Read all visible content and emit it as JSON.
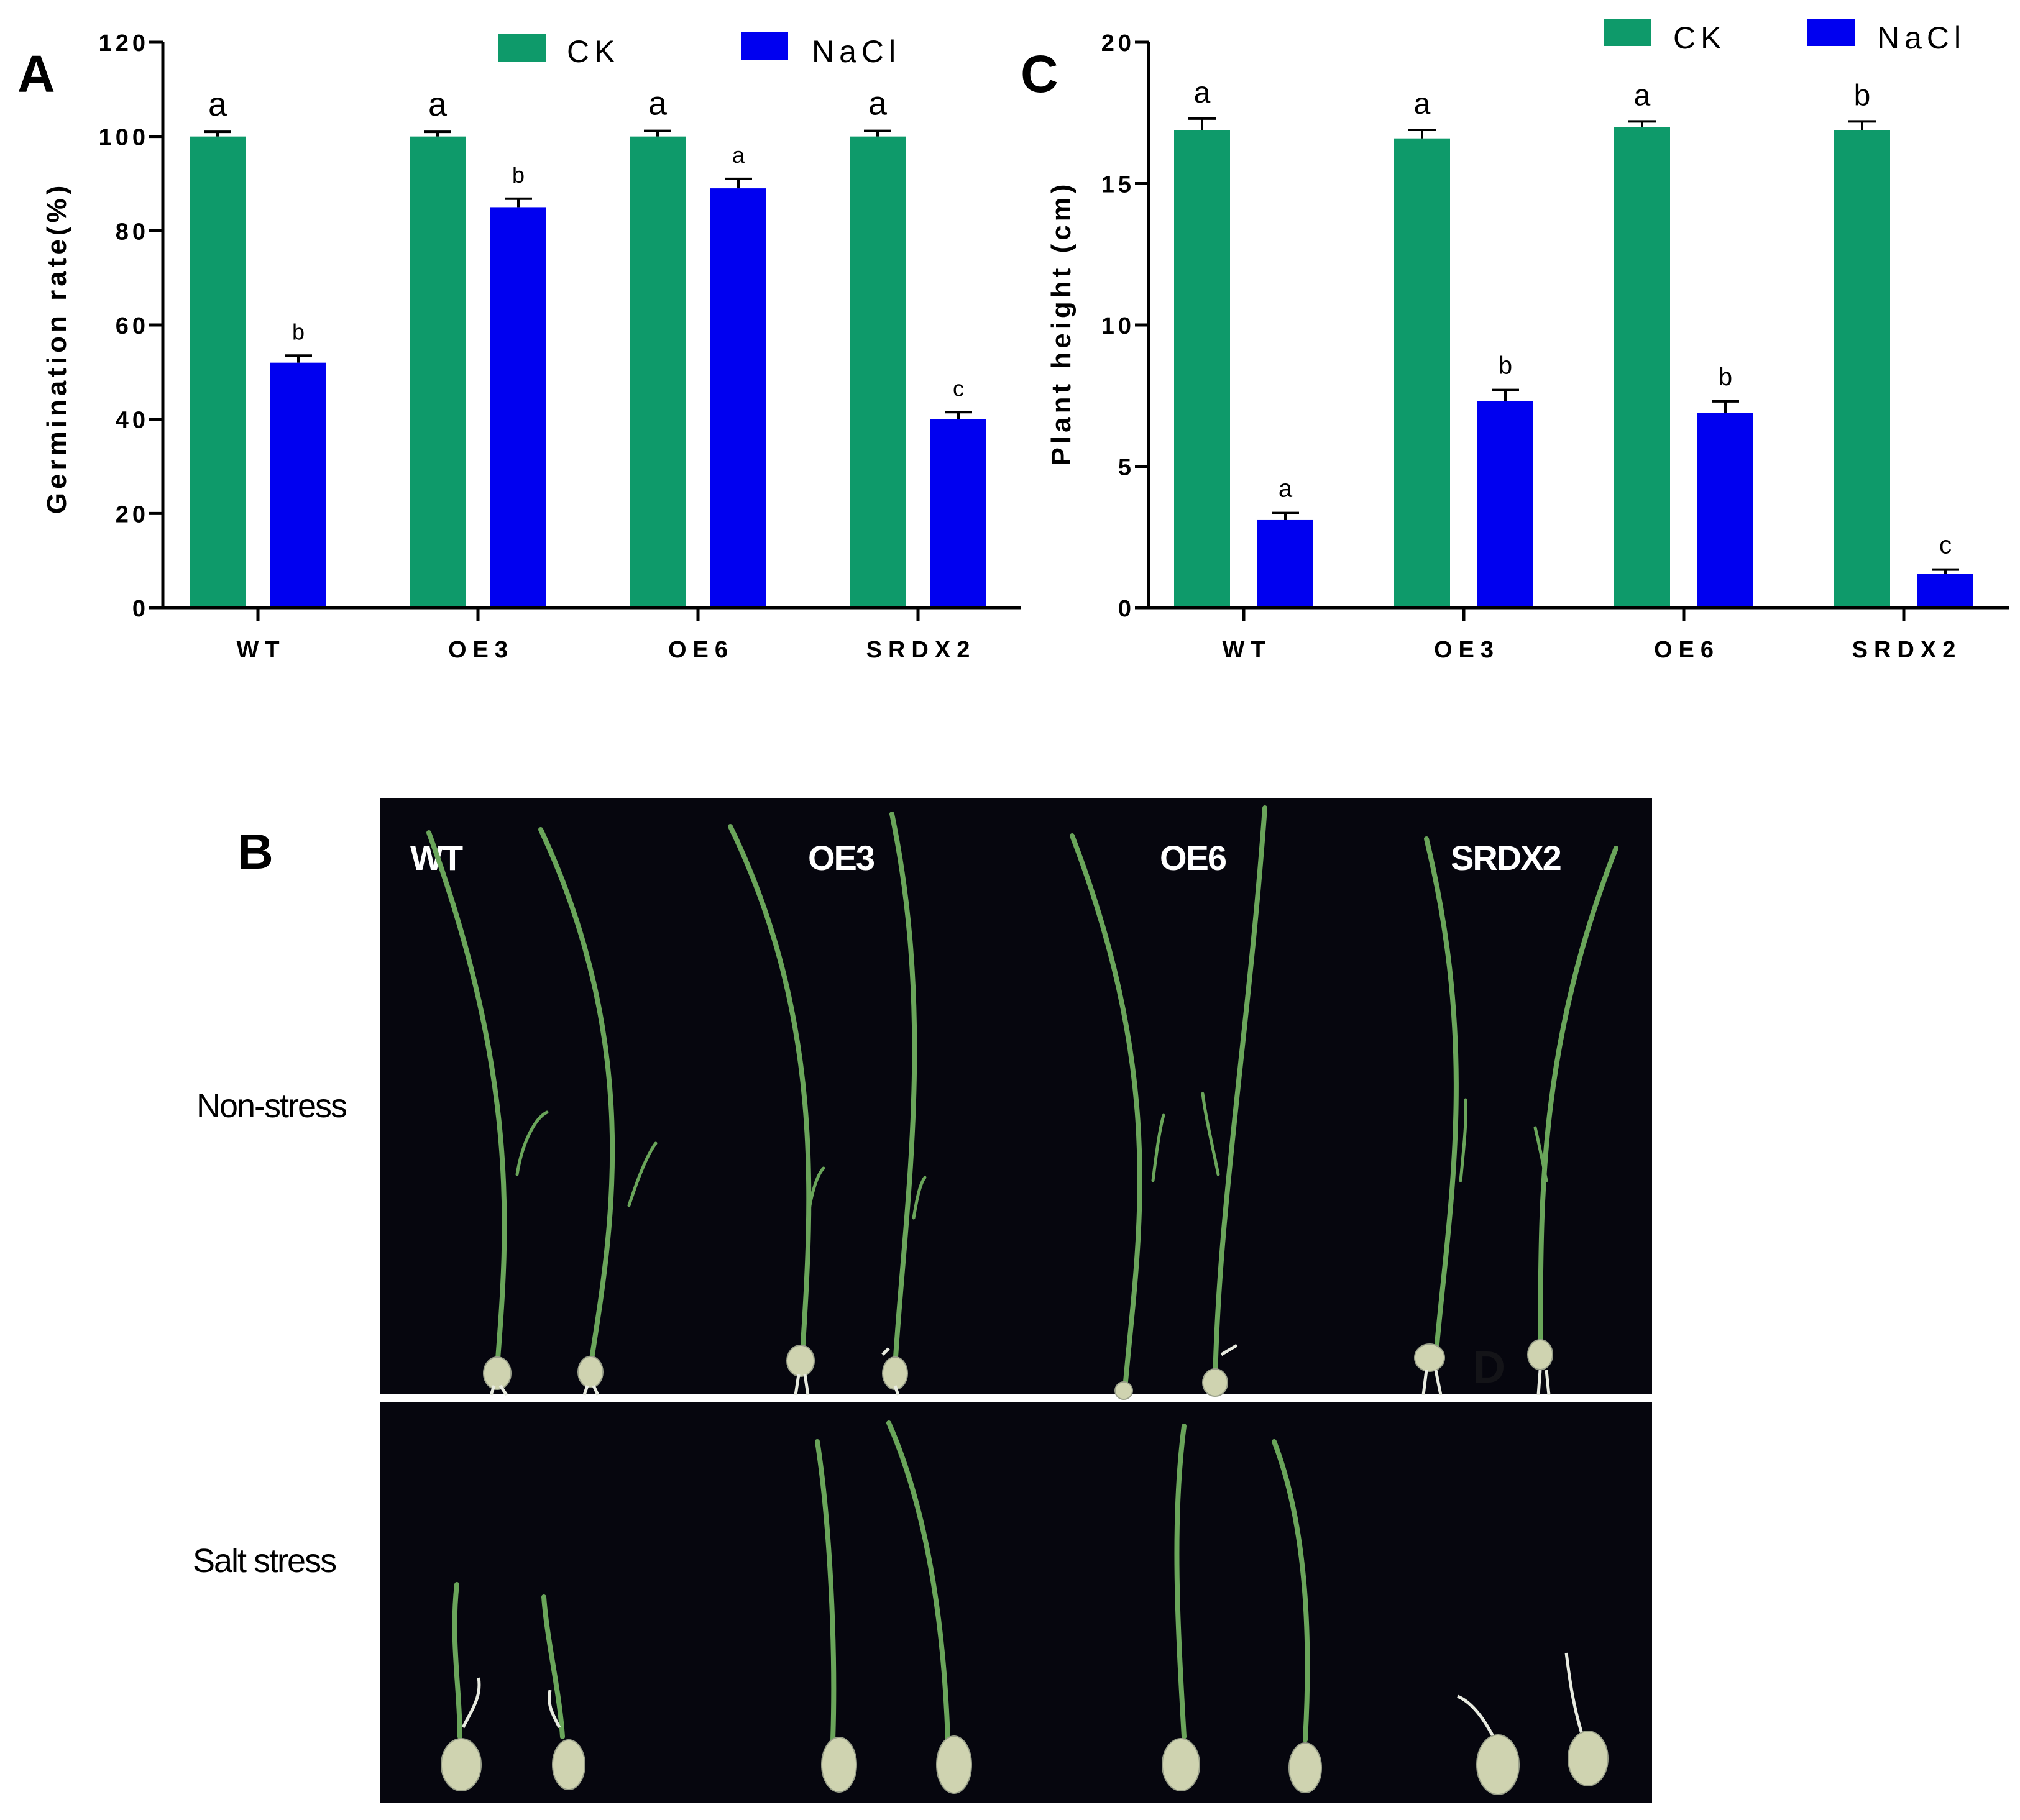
{
  "colors": {
    "ck": "#0e9a6a",
    "nacl": "#0000f0",
    "photo_bg": "#06060e",
    "leaf": "#6aa55a",
    "seed": "#cfd3b0"
  },
  "panels": {
    "A": "A",
    "B": "B",
    "C": "C"
  },
  "chart_data": [
    {
      "id": "A",
      "type": "bar",
      "title": "",
      "xlabel": "",
      "ylabel": "Germination rate(%)",
      "ylim": [
        0,
        120
      ],
      "yticks": [
        0,
        20,
        40,
        60,
        80,
        100,
        120
      ],
      "ytick_labels": [
        "0",
        "20",
        "40",
        "60",
        "80",
        "100",
        "120"
      ],
      "categories": [
        "WT",
        "OE3",
        "OE6",
        "SRDX2"
      ],
      "legend": {
        "position": "top",
        "entries": [
          "CK",
          "NaCl"
        ]
      },
      "series": [
        {
          "name": "CK",
          "values": [
            100,
            100,
            100,
            100
          ],
          "errors": [
            1,
            1,
            1.2,
            1.2
          ],
          "labels": [
            "a",
            "a",
            "a",
            "a"
          ]
        },
        {
          "name": "NaCl",
          "values": [
            52,
            85,
            89,
            40
          ],
          "errors": [
            1.5,
            1.8,
            2,
            1.5
          ],
          "labels": [
            "b",
            "b",
            "a",
            "c"
          ]
        }
      ]
    },
    {
      "id": "C",
      "type": "bar",
      "title": "",
      "xlabel": "",
      "ylabel": "Plant height (cm)",
      "ylim": [
        0,
        20
      ],
      "yticks": [
        0,
        5,
        10,
        15,
        20
      ],
      "ytick_labels": [
        "0",
        "5",
        "10",
        "15",
        "20"
      ],
      "categories": [
        "WT",
        "OE3",
        "OE6",
        "SRDX2"
      ],
      "legend": {
        "position": "top",
        "entries": [
          "CK",
          "NaCl"
        ]
      },
      "series": [
        {
          "name": "CK",
          "values": [
            16.9,
            16.6,
            17.0,
            16.9
          ],
          "errors": [
            0.4,
            0.3,
            0.2,
            0.3
          ],
          "labels": [
            "a",
            "a",
            "a",
            "b"
          ]
        },
        {
          "name": "NaCl",
          "values": [
            3.1,
            7.3,
            6.9,
            1.2
          ],
          "errors": [
            0.25,
            0.4,
            0.4,
            0.15
          ],
          "labels": [
            "a",
            "b",
            "b",
            "c"
          ]
        }
      ]
    }
  ],
  "photo": {
    "column_labels": [
      "WT",
      "OE3",
      "OE6",
      "SRDX2"
    ],
    "row_labels": [
      "Non-stress",
      "Salt stress"
    ],
    "watermark": "D"
  }
}
